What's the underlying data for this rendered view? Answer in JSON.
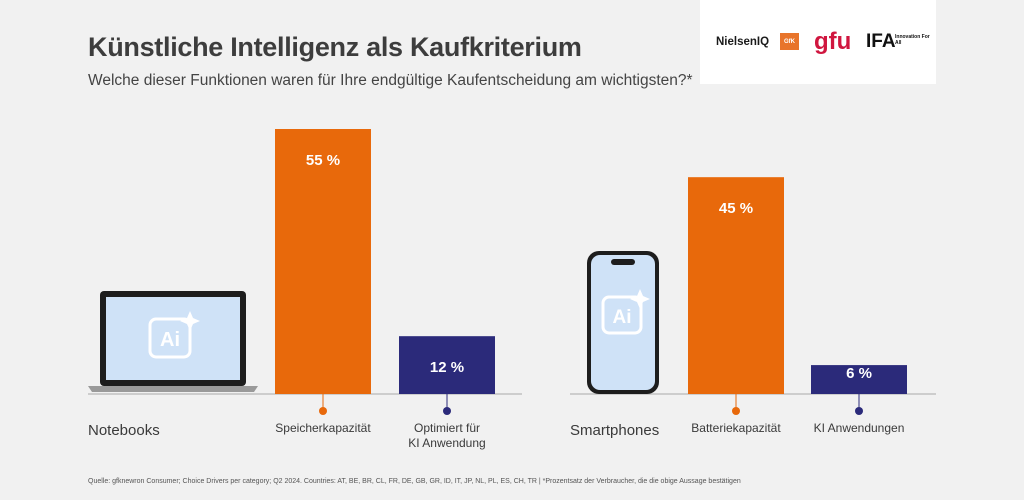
{
  "header": {
    "title": "Künstliche Intelligenz als Kaufkriterium",
    "subtitle": "Welche dieser Funktionen waren für Ihre endgültige Kaufentscheidung am wichtigsten?*"
  },
  "logos": {
    "nielseniq": "NielsenIQ",
    "gfk": "GfK",
    "gfu": "gfu",
    "ifa": "IFA",
    "ifa_tagline": "Innovation For All"
  },
  "colors": {
    "orange": "#e8690b",
    "navy": "#2b2a7a",
    "background": "#f1f1f1"
  },
  "chart_data": [
    {
      "type": "bar",
      "group_label": "Notebooks",
      "icon": "laptop-ai-icon",
      "icon_text": "Ai",
      "categories": [
        "Speicherkapazität",
        "Optimiert für KI Anwendung"
      ],
      "values": [
        55,
        12
      ],
      "value_labels": [
        "55 %",
        "12 %"
      ],
      "colors": [
        "#e8690b",
        "#2b2a7a"
      ],
      "unit": "%"
    },
    {
      "type": "bar",
      "group_label": "Smartphones",
      "icon": "smartphone-ai-icon",
      "icon_text": "Ai",
      "categories": [
        "Batteriekapazität",
        "KI Anwendungen"
      ],
      "values": [
        45,
        6
      ],
      "value_labels": [
        "45 %",
        "6 %"
      ],
      "colors": [
        "#e8690b",
        "#2b2a7a"
      ],
      "unit": "%"
    }
  ],
  "footer": {
    "source": "Quelle: gfknewron Consumer; Choice Drivers per category; Q2 2024. Countries: AT, BE, BR, CL, FR, DE, GB, GR, ID, IT, JP, NL, PL, ES, CH, TR | *Prozentsatz der Verbraucher, die die obige Aussage bestätigen"
  }
}
